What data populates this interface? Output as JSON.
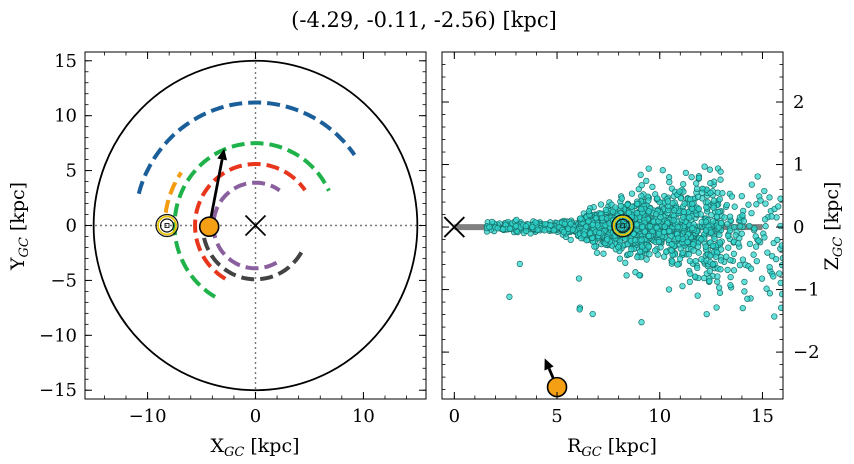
{
  "figure": {
    "title": "(-4.29, -0.11, -2.56) [kpc]"
  },
  "chart_data": [
    {
      "type": "scatter",
      "panel": "left",
      "xlabel": "X_GC [kpc]",
      "ylabel": "Y_GC [kpc]",
      "xlim": [
        -15.8,
        15.8
      ],
      "ylim": [
        -15.8,
        15.8
      ],
      "xticks": [
        -10,
        0,
        10
      ],
      "yticks": [
        -15,
        -10,
        -5,
        0,
        5,
        10,
        15
      ],
      "xtick_labels": [
        "−10",
        "0",
        "10"
      ],
      "ytick_labels": [
        "−15",
        "−10",
        "−5",
        "0",
        "5",
        "10",
        "15"
      ],
      "grid": false,
      "boundary_circle_radius": 15,
      "galactic_center": [
        0,
        0
      ],
      "sun_position": [
        -8.2,
        0
      ],
      "object_position": [
        -4.29,
        -0.11
      ],
      "motion_arrow": {
        "from": [
          -4.29,
          -0.11
        ],
        "to": [
          -2.9,
          7.0
        ]
      },
      "spiral_arms": [
        {
          "color": "#1a5e9a",
          "radius": 11.2,
          "theta_start": 165,
          "theta_end": 35
        },
        {
          "color": "#1fb24a",
          "radius": 7.5,
          "theta_start": 240,
          "theta_end": 25
        },
        {
          "color": "#e8361c",
          "radius": 5.6,
          "theta_start": 240,
          "theta_end": 35
        },
        {
          "color": "#8a5f9e",
          "radius": 3.9,
          "theta_start": 300,
          "theta_end": 55
        },
        {
          "color": "#434343",
          "radius": 4.9,
          "theta_start": 330,
          "theta_end": 175
        },
        {
          "color": "#f39c12",
          "radius": 8.4,
          "theta_start": 172,
          "theta_end": 145
        }
      ]
    },
    {
      "type": "scatter",
      "panel": "right",
      "xlabel": "R_GC [kpc]",
      "ylabel": "Z_GC [kpc]",
      "xlim": [
        -0.6,
        16
      ],
      "ylim": [
        -2.75,
        2.8
      ],
      "xticks": [
        0,
        5,
        10,
        15
      ],
      "yticks": [
        -2,
        -1,
        0,
        1,
        2
      ],
      "xtick_labels": [
        "0",
        "5",
        "10",
        "15"
      ],
      "ytick_labels": [
        "−2",
        "−1",
        "0",
        "1",
        "2"
      ],
      "grid": false,
      "disk_band": {
        "x": [
          0,
          15
        ],
        "z": 0,
        "color": "#808080"
      },
      "galactic_center": [
        0,
        0
      ],
      "sun_position": [
        8.2,
        0.02
      ],
      "object_position": [
        5.0,
        -2.56
      ],
      "motion_arrow": {
        "from": [
          5.0,
          -2.56
        ],
        "to": [
          4.4,
          -2.1
        ]
      },
      "field_points": {
        "color": "#2ed6cc",
        "edge": "#1b6f6a",
        "approx_count": 1600,
        "r_range": [
          1.5,
          16
        ],
        "z_spread": [
          -1.7,
          1.2
        ]
      }
    }
  ]
}
